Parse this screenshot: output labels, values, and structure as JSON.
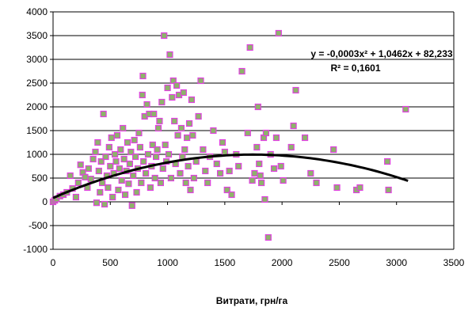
{
  "chart_data": {
    "type": "scatter",
    "xlabel": "Витрати, грн/га",
    "ylabel": "",
    "xlim": [
      0,
      3500
    ],
    "ylim": [
      -1000,
      4000
    ],
    "x_ticks": [
      "0",
      "500",
      "1000",
      "1500",
      "2000",
      "2500",
      "3000",
      "3500"
    ],
    "y_ticks": [
      "4000",
      "3500",
      "3000",
      "2500",
      "2000",
      "1500",
      "1000",
      "500",
      "0",
      "-500",
      "-1000"
    ],
    "grid": "horizontal",
    "equation": "y = -0,0003x² + 1,0462x + 82,233",
    "r_squared": "R² = 0,1601",
    "trendline": {
      "type": "polynomial",
      "coefficients": [
        -0.0003,
        1.0462,
        82.233
      ],
      "x_range": [
        0,
        3100
      ],
      "color": "#000000"
    },
    "marker_fill": "#8db36a",
    "marker_edge": "#e040e0",
    "series": [
      {
        "points": [
          [
            0,
            0
          ],
          [
            15,
            30
          ],
          [
            30,
            60
          ],
          [
            60,
            120
          ],
          [
            90,
            150
          ],
          [
            120,
            200
          ],
          [
            150,
            550
          ],
          [
            170,
            280
          ],
          [
            200,
            100
          ],
          [
            220,
            400
          ],
          [
            240,
            780
          ],
          [
            260,
            620
          ],
          [
            280,
            520
          ],
          [
            300,
            300
          ],
          [
            310,
            700
          ],
          [
            330,
            480
          ],
          [
            350,
            900
          ],
          [
            370,
            1050
          ],
          [
            380,
            -20
          ],
          [
            390,
            1250
          ],
          [
            400,
            650
          ],
          [
            410,
            200
          ],
          [
            420,
            850
          ],
          [
            430,
            400
          ],
          [
            440,
            1850
          ],
          [
            450,
            -50
          ],
          [
            460,
            950
          ],
          [
            470,
            550
          ],
          [
            480,
            300
          ],
          [
            490,
            1150
          ],
          [
            500,
            750
          ],
          [
            510,
            1350
          ],
          [
            520,
            100
          ],
          [
            530,
            600
          ],
          [
            540,
            1000
          ],
          [
            550,
            850
          ],
          [
            560,
            1400
          ],
          [
            570,
            250
          ],
          [
            580,
            700
          ],
          [
            590,
            1100
          ],
          [
            600,
            450
          ],
          [
            610,
            1550
          ],
          [
            620,
            900
          ],
          [
            630,
            150
          ],
          [
            640,
            650
          ],
          [
            650,
            1250
          ],
          [
            660,
            380
          ],
          [
            670,
            800
          ],
          [
            680,
            1050
          ],
          [
            690,
            -80
          ],
          [
            700,
            550
          ],
          [
            710,
            1300
          ],
          [
            720,
            950
          ],
          [
            730,
            200
          ],
          [
            740,
            700
          ],
          [
            750,
            1450
          ],
          [
            760,
            1150
          ],
          [
            770,
            400
          ],
          [
            780,
            2250
          ],
          [
            785,
            2650
          ],
          [
            790,
            850
          ],
          [
            800,
            1800
          ],
          [
            810,
            600
          ],
          [
            820,
            2050
          ],
          [
            830,
            1000
          ],
          [
            840,
            1850
          ],
          [
            850,
            300
          ],
          [
            860,
            750
          ],
          [
            870,
            1200
          ],
          [
            880,
            1850
          ],
          [
            890,
            500
          ],
          [
            900,
            950
          ],
          [
            910,
            1100
          ],
          [
            920,
            1550
          ],
          [
            930,
            1700
          ],
          [
            940,
            400
          ],
          [
            950,
            2100
          ],
          [
            960,
            700
          ],
          [
            970,
            3500
          ],
          [
            980,
            1200
          ],
          [
            990,
            850
          ],
          [
            1000,
            2400
          ],
          [
            1010,
            1000
          ],
          [
            1020,
            3100
          ],
          [
            1030,
            500
          ],
          [
            1040,
            2200
          ],
          [
            1050,
            2550
          ],
          [
            1060,
            1700
          ],
          [
            1070,
            800
          ],
          [
            1080,
            2450
          ],
          [
            1090,
            1400
          ],
          [
            1100,
            2250
          ],
          [
            1110,
            600
          ],
          [
            1120,
            1550
          ],
          [
            1130,
            950
          ],
          [
            1140,
            2300
          ],
          [
            1150,
            1100
          ],
          [
            1160,
            400
          ],
          [
            1170,
            1350
          ],
          [
            1180,
            750
          ],
          [
            1190,
            1650
          ],
          [
            1200,
            250
          ],
          [
            1210,
            2150
          ],
          [
            1220,
            1400
          ],
          [
            1230,
            500
          ],
          [
            1250,
            850
          ],
          [
            1270,
            1800
          ],
          [
            1290,
            2550
          ],
          [
            1310,
            1100
          ],
          [
            1330,
            650
          ],
          [
            1350,
            400
          ],
          [
            1370,
            950
          ],
          [
            1400,
            1500
          ],
          [
            1430,
            800
          ],
          [
            1460,
            600
          ],
          [
            1480,
            1250
          ],
          [
            1500,
            1050
          ],
          [
            1520,
            250
          ],
          [
            1540,
            650
          ],
          [
            1560,
            150
          ],
          [
            1600,
            1000
          ],
          [
            1620,
            750
          ],
          [
            1650,
            2750
          ],
          [
            1700,
            1450
          ],
          [
            1720,
            3250
          ],
          [
            1740,
            450
          ],
          [
            1760,
            600
          ],
          [
            1780,
            1150
          ],
          [
            1790,
            2000
          ],
          [
            1800,
            800
          ],
          [
            1810,
            550
          ],
          [
            1820,
            400
          ],
          [
            1840,
            1350
          ],
          [
            1850,
            50
          ],
          [
            1860,
            1450
          ],
          [
            1880,
            -750
          ],
          [
            1900,
            1000
          ],
          [
            1930,
            700
          ],
          [
            1950,
            1350
          ],
          [
            1970,
            3550
          ],
          [
            1990,
            750
          ],
          [
            2010,
            450
          ],
          [
            2080,
            1150
          ],
          [
            2100,
            1600
          ],
          [
            2120,
            2350
          ],
          [
            2200,
            1350
          ],
          [
            2250,
            600
          ],
          [
            2300,
            400
          ],
          [
            2450,
            1100
          ],
          [
            2480,
            300
          ],
          [
            2650,
            250
          ],
          [
            2680,
            300
          ],
          [
            2920,
            850
          ],
          [
            2930,
            250
          ],
          [
            3080,
            1950
          ]
        ]
      }
    ]
  }
}
